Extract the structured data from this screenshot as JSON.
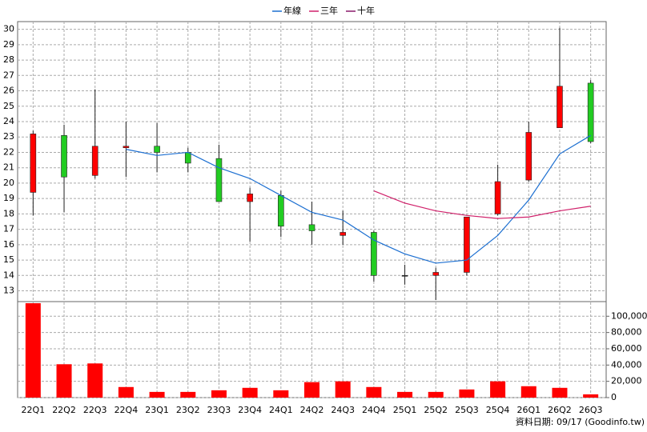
{
  "chart_data": [
    {
      "type": "candlestick",
      "categories": [
        "22Q1",
        "22Q2",
        "22Q3",
        "22Q4",
        "23Q1",
        "23Q2",
        "23Q3",
        "23Q4",
        "24Q1",
        "24Q2",
        "24Q3",
        "24Q4",
        "25Q1",
        "25Q2",
        "25Q3",
        "25Q4",
        "26Q1",
        "26Q2",
        "26Q3"
      ],
      "open": [
        19.4,
        23.1,
        20.5,
        22.3,
        22.4,
        22.0,
        21.6,
        18.8,
        19.2,
        17.3,
        16.6,
        16.8,
        14.0,
        14.0,
        14.2,
        18.0,
        20.2,
        23.6,
        26.5
      ],
      "high": [
        23.4,
        23.8,
        26.1,
        24.0,
        23.9,
        22.3,
        22.5,
        19.7,
        19.5,
        18.8,
        18.2,
        16.9,
        14.7,
        14.5,
        17.8,
        21.2,
        24.0,
        30.1,
        26.7
      ],
      "low": [
        17.9,
        18.1,
        20.3,
        20.4,
        20.7,
        20.7,
        18.8,
        16.2,
        16.5,
        16.0,
        16.0,
        13.6,
        13.4,
        12.4,
        14.0,
        17.9,
        20.1,
        23.6,
        22.6
      ],
      "close": [
        23.2,
        20.4,
        22.4,
        22.4,
        22.0,
        21.3,
        18.8,
        19.3,
        17.2,
        16.9,
        16.8,
        14.0,
        14.0,
        14.2,
        17.8,
        20.1,
        23.3,
        26.3,
        22.7
      ],
      "up_color": "#ff0000",
      "down_color": "#22cc22",
      "flat_color": "#333333",
      "series": [
        {
          "name": "年線",
          "color": "#1c6fd1",
          "values": [
            null,
            null,
            null,
            22.2,
            21.8,
            22.0,
            21.0,
            20.3,
            19.2,
            18.1,
            17.6,
            16.3,
            15.4,
            14.8,
            15.0,
            16.6,
            18.9,
            21.9,
            23.1
          ]
        },
        {
          "name": "三年",
          "color": "#d0206a",
          "values": [
            null,
            null,
            null,
            null,
            null,
            null,
            null,
            null,
            null,
            null,
            null,
            19.5,
            18.7,
            18.2,
            17.9,
            17.7,
            17.8,
            18.2,
            18.5
          ]
        },
        {
          "name": "十年",
          "color": "#8a1a6a",
          "values": [
            null,
            null,
            null,
            null,
            null,
            null,
            null,
            null,
            null,
            null,
            null,
            null,
            null,
            null,
            null,
            null,
            null,
            null,
            null
          ]
        }
      ],
      "ylim": [
        12.3,
        30.5
      ],
      "yticks": [
        13,
        14,
        15,
        16,
        17,
        18,
        19,
        20,
        21,
        22,
        23,
        24,
        25,
        26,
        27,
        28,
        29,
        30
      ],
      "grid": true
    },
    {
      "type": "bar",
      "values": [
        116000,
        41000,
        42000,
        13000,
        7000,
        7000,
        9000,
        12000,
        9000,
        19000,
        20000,
        13000,
        7000,
        7000,
        10000,
        20000,
        14000,
        12000,
        4000
      ],
      "color": "#ff0000",
      "ylim": [
        0,
        117000
      ],
      "yticks": [
        0,
        {
          "value": 20000,
          "label": "20,000"
        },
        {
          "value": 40000,
          "label": "40,000"
        },
        {
          "value": 60000,
          "label": "60,000"
        },
        {
          "value": 80000,
          "label": "80,000"
        },
        {
          "value": 100000,
          "label": "100,000"
        }
      ],
      "grid": true
    }
  ],
  "footer": "資料日期: 09/17 (Goodinfo.tw)"
}
